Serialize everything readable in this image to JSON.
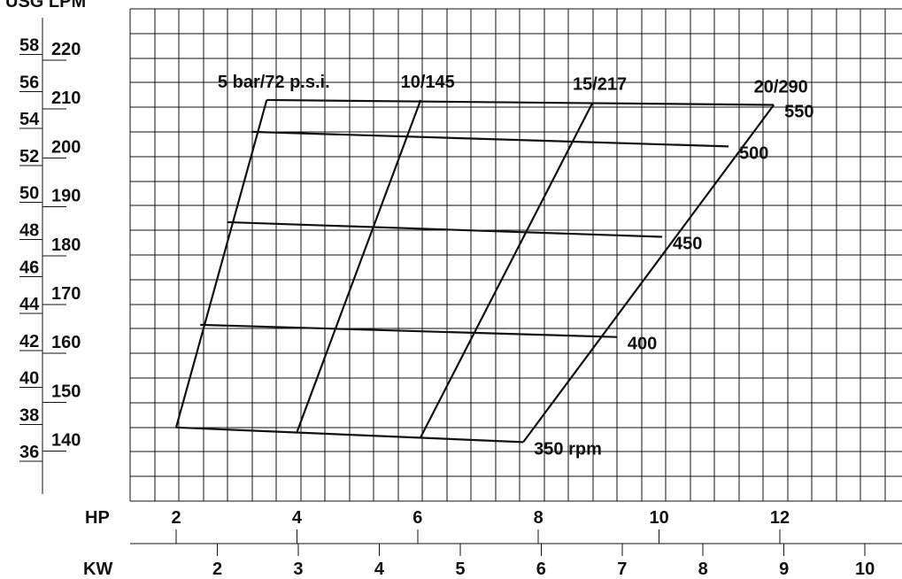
{
  "header_partial": "USG LPM",
  "chart_data": {
    "type": "line",
    "title": "",
    "xlabel_hp": "HP",
    "xlabel_kw": "KW",
    "x_hp_ticks": [
      2,
      4,
      6,
      8,
      10,
      12
    ],
    "x_kw_ticks": [
      2,
      3,
      4,
      5,
      6,
      7,
      8,
      9,
      10
    ],
    "y_usgpm_ticks": [
      36,
      38,
      40,
      42,
      44,
      46,
      48,
      50,
      52,
      54,
      56,
      58
    ],
    "y_lpm_ticks": [
      140,
      150,
      160,
      170,
      180,
      190,
      200,
      210,
      220
    ],
    "pressure_series": [
      {
        "name": "5 bar/72 p.s.i.",
        "points": [
          {
            "hp": 2.0,
            "lpm": 142.5
          },
          {
            "hp": 3.5,
            "lpm": 209.5
          }
        ]
      },
      {
        "name": "10/145",
        "points": [
          {
            "hp": 4.0,
            "lpm": 141.5
          },
          {
            "hp": 6.05,
            "lpm": 209.5
          }
        ]
      },
      {
        "name": "15/217",
        "points": [
          {
            "hp": 6.05,
            "lpm": 140.5
          },
          {
            "hp": 8.9,
            "lpm": 209.0
          }
        ]
      },
      {
        "name": "20/290",
        "points": [
          {
            "hp": 7.75,
            "lpm": 139.5
          },
          {
            "hp": 11.9,
            "lpm": 208.5
          }
        ]
      }
    ],
    "rpm_series": [
      {
        "name": "350 rpm",
        "points": [
          {
            "hp": 2.0,
            "lpm": 142.5
          },
          {
            "hp": 7.75,
            "lpm": 139.5
          }
        ]
      },
      {
        "name": "400",
        "points": [
          {
            "hp": 2.4,
            "lpm": 163.5
          },
          {
            "hp": 9.3,
            "lpm": 161.0
          }
        ]
      },
      {
        "name": "450",
        "points": [
          {
            "hp": 2.85,
            "lpm": 184.5
          },
          {
            "hp": 10.05,
            "lpm": 181.5
          }
        ]
      },
      {
        "name": "500",
        "points": [
          {
            "hp": 3.25,
            "lpm": 203.0
          },
          {
            "hp": 11.15,
            "lpm": 200.0
          }
        ]
      },
      {
        "name": "550",
        "points": [
          {
            "hp": 3.5,
            "lpm": 209.5
          },
          {
            "hp": 11.9,
            "lpm": 208.5
          }
        ]
      }
    ],
    "grid": true
  }
}
